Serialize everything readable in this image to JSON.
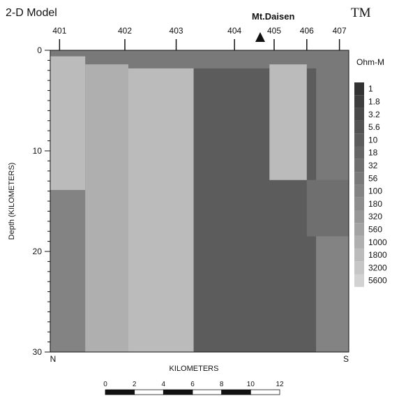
{
  "chart_data": {
    "type": "heatmap",
    "title": "2-D Model",
    "mode_label": "TM",
    "feature_label": "Mt.Daisen",
    "xlabel": "KILOMETERS",
    "ylabel": "Depth (KILOMETERS)",
    "ylim": [
      0,
      30
    ],
    "xlim": [
      0,
      12
    ],
    "y_ticks": [
      "0",
      "10",
      "20",
      "30"
    ],
    "x_end_labels": [
      "N",
      "S"
    ],
    "stations": [
      {
        "label": "401",
        "x": 0.4
      },
      {
        "label": "402",
        "x": 3.2
      },
      {
        "label": "403",
        "x": 5.4
      },
      {
        "label": "404",
        "x": 7.9
      },
      {
        "label": "405",
        "x": 9.6
      },
      {
        "label": "406",
        "x": 11.0
      },
      {
        "label": "407",
        "x": 12.4
      }
    ],
    "feature_x": 8.9,
    "scale_bar": {
      "ticks": [
        "0",
        "2",
        "4",
        "6",
        "8",
        "10",
        "12"
      ]
    },
    "legend": {
      "title": "Ohm-M",
      "entries": [
        "1",
        "1.8",
        "3.2",
        "5.6",
        "10",
        "18",
        "32",
        "56",
        "100",
        "180",
        "320",
        "560",
        "1000",
        "1800",
        "3200",
        "5600"
      ],
      "colors": [
        "#333333",
        "#3e3e3e",
        "#494949",
        "#535353",
        "#5c5c5c",
        "#666666",
        "#6f6f6f",
        "#797979",
        "#838383",
        "#8d8d8d",
        "#979797",
        "#a3a3a3",
        "#afafaf",
        "#bbbbbb",
        "#c6c6c6",
        "#d2d2d2"
      ]
    },
    "blocks": [
      {
        "x": [
          0,
          1.5
        ],
        "depth": [
          0.6,
          13.9
        ],
        "ohm_m": 1800
      },
      {
        "x": [
          0,
          1.5
        ],
        "depth": [
          13.9,
          30
        ],
        "ohm_m": 100
      },
      {
        "x": [
          1.5,
          3.35
        ],
        "depth": [
          1.4,
          30
        ],
        "ohm_m": 1000
      },
      {
        "x": [
          3.35,
          6.15
        ],
        "depth": [
          1.8,
          30
        ],
        "ohm_m": 1800
      },
      {
        "x": [
          6.15,
          9.4
        ],
        "depth": [
          1.8,
          30
        ],
        "ohm_m": 10
      },
      {
        "x": [
          9.4,
          11.4
        ],
        "depth": [
          1.8,
          30
        ],
        "ohm_m": 10
      },
      {
        "x": [
          9.4,
          11.0
        ],
        "depth": [
          1.4,
          12.9
        ],
        "ohm_m": 1800
      },
      {
        "x": [
          11.0,
          11.8
        ],
        "depth": [
          12.9,
          18.5
        ],
        "ohm_m": 32
      },
      {
        "x": [
          11.8,
          12.8
        ],
        "depth": [
          12.9,
          18.5
        ],
        "ohm_m": 32
      },
      {
        "x": [
          11.4,
          12.8
        ],
        "depth": [
          18.5,
          30
        ],
        "ohm_m": 100
      }
    ],
    "surface_layer_ohm_m": 56,
    "grid": false
  }
}
